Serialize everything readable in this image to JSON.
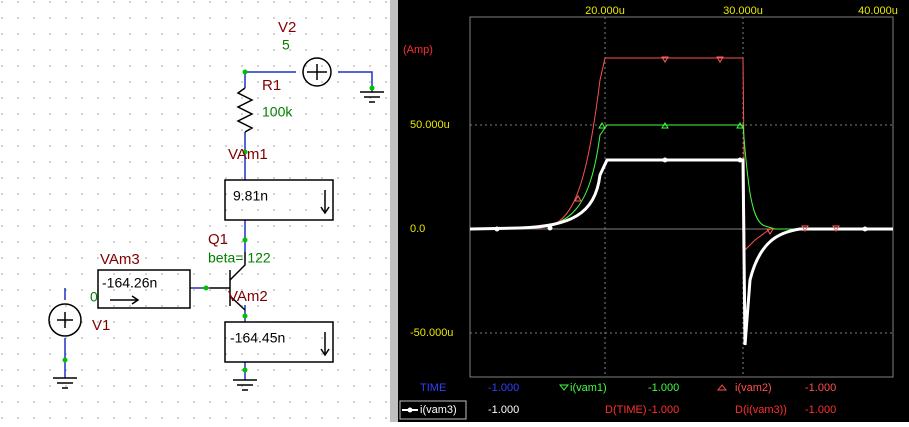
{
  "schematic": {
    "labels": {
      "v2": "V2",
      "v2_value": "5",
      "r1": "R1",
      "r1_value": "100k",
      "vam1": "VAm1",
      "vam1_reading": "9.81n",
      "q1": "Q1",
      "q1_beta": "beta= 122",
      "vam3": "VAm3",
      "vam3_reading": "-164.26n",
      "node0": "0",
      "vam2": "VAm2",
      "vam2_reading": "-164.45n",
      "v1": "V1"
    }
  },
  "plot": {
    "unit": "(Amp)",
    "xticks": [
      "20.000u",
      "30.000u",
      "40.000u"
    ],
    "yticks": [
      "50.000u",
      "0.0",
      "-50.000u"
    ],
    "legend": [
      [
        "TIME",
        "-1.000"
      ],
      [
        "i(vam1)",
        "-1.000"
      ],
      [
        "i(vam2)",
        "-1.000"
      ],
      [
        "i(vam3)",
        "-1.000"
      ],
      [
        "D(TIME)",
        "-1.000"
      ],
      [
        "D(i(vam3))",
        "-1.000"
      ]
    ]
  }
}
